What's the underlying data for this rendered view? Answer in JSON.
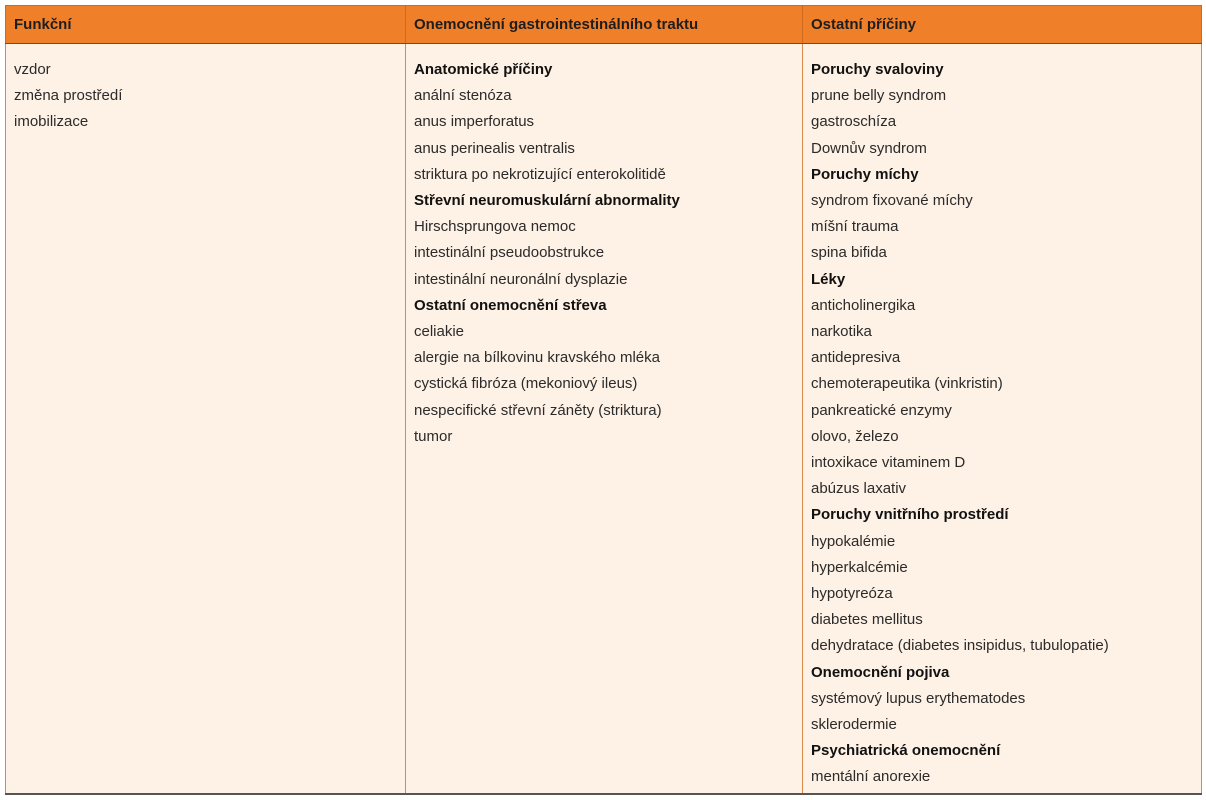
{
  "table": {
    "headers": [
      "Funkční",
      "Onemocnění gastrointestinálního traktu",
      "Ostatní příčiny"
    ],
    "columns": [
      [
        {
          "text": "vzdor",
          "heading": false
        },
        {
          "text": "změna prostředí",
          "heading": false
        },
        {
          "text": "imobilizace",
          "heading": false
        }
      ],
      [
        {
          "text": "Anatomické příčiny",
          "heading": true
        },
        {
          "text": "anální stenóza",
          "heading": false
        },
        {
          "text": "anus imperforatus",
          "heading": false
        },
        {
          "text": "anus perinealis ventralis",
          "heading": false
        },
        {
          "text": "striktura po nekrotizující enterokolitidě",
          "heading": false
        },
        {
          "text": "Střevní neuromuskulární abnormality",
          "heading": true
        },
        {
          "text": "Hirschsprungova nemoc",
          "heading": false
        },
        {
          "text": "intestinální pseudoobstrukce",
          "heading": false
        },
        {
          "text": "intestinální neuronální dysplazie",
          "heading": false
        },
        {
          "text": "Ostatní onemocnění střeva",
          "heading": true
        },
        {
          "text": "celiakie",
          "heading": false
        },
        {
          "text": "alergie na bílkovinu kravského mléka",
          "heading": false
        },
        {
          "text": "cystická fibróza (mekoniový ileus)",
          "heading": false
        },
        {
          "text": "nespecifické střevní záněty (striktura)",
          "heading": false
        },
        {
          "text": "tumor",
          "heading": false
        }
      ],
      [
        {
          "text": "Poruchy svaloviny",
          "heading": true
        },
        {
          "text": "prune belly syndrom",
          "heading": false
        },
        {
          "text": "gastroschíza",
          "heading": false
        },
        {
          "text": "Downův syndrom",
          "heading": false
        },
        {
          "text": "Poruchy míchy",
          "heading": true
        },
        {
          "text": "syndrom fixované míchy",
          "heading": false
        },
        {
          "text": "míšní trauma",
          "heading": false
        },
        {
          "text": "spina bifida",
          "heading": false
        },
        {
          "text": "Léky",
          "heading": true
        },
        {
          "text": "anticholinergika",
          "heading": false
        },
        {
          "text": "narkotika",
          "heading": false
        },
        {
          "text": "antidepresiva",
          "heading": false
        },
        {
          "text": "chemoterapeutika (vinkristin)",
          "heading": false
        },
        {
          "text": "pankreatické enzymy",
          "heading": false
        },
        {
          "text": "olovo, železo",
          "heading": false
        },
        {
          "text": "intoxikace vitaminem D",
          "heading": false
        },
        {
          "text": "abúzus laxativ",
          "heading": false
        },
        {
          "text": "Poruchy vnitřního prostředí",
          "heading": true
        },
        {
          "text": "hypokalémie",
          "heading": false
        },
        {
          "text": "hyperkalcémie",
          "heading": false
        },
        {
          "text": "hypotyreóza",
          "heading": false
        },
        {
          "text": "diabetes mellitus",
          "heading": false
        },
        {
          "text": "dehydratace (diabetes insipidus, tubulopatie)",
          "heading": false
        },
        {
          "text": "Onemocnění pojiva",
          "heading": true
        },
        {
          "text": "systémový lupus erythematodes",
          "heading": false
        },
        {
          "text": "sklerodermie",
          "heading": false
        },
        {
          "text": "Psychiatrická onemocnění",
          "heading": true
        },
        {
          "text": "mentální anorexie",
          "heading": false
        }
      ]
    ]
  }
}
